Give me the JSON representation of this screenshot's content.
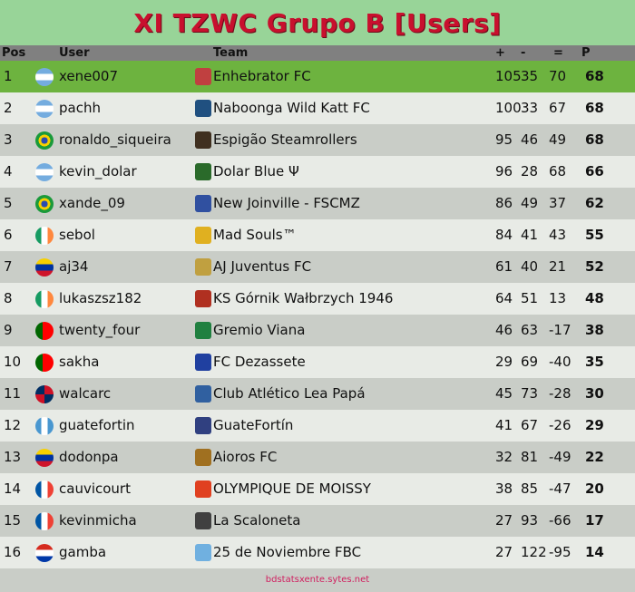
{
  "title": "XI TZWC Grupo B [Users]",
  "columns": {
    "pos": "Pos",
    "user": "User",
    "team": "Team",
    "for": "+",
    "against": "-",
    "diff": "=",
    "points": "P"
  },
  "rows": [
    {
      "pos": "1",
      "user": "xene007",
      "flag": "argentina",
      "team": "Enhebrator FC",
      "for": "105",
      "against": "35",
      "diff": "70",
      "points": "68"
    },
    {
      "pos": "2",
      "user": "pachh",
      "flag": "argentina",
      "team": "Naboonga Wild Katt FC",
      "for": "100",
      "against": "33",
      "diff": "67",
      "points": "68"
    },
    {
      "pos": "3",
      "user": "ronaldo_siqueira",
      "flag": "brazil",
      "team": "Espigão Steamrollers",
      "for": "95",
      "against": "46",
      "diff": "49",
      "points": "68"
    },
    {
      "pos": "4",
      "user": "kevin_dolar",
      "flag": "argentina",
      "team": "Dolar Blue Ψ",
      "for": "96",
      "against": "28",
      "diff": "68",
      "points": "66"
    },
    {
      "pos": "5",
      "user": "xande_09",
      "flag": "brazil",
      "team": "New Joinville - FSCMZ",
      "for": "86",
      "against": "49",
      "diff": "37",
      "points": "62"
    },
    {
      "pos": "6",
      "user": "sebol",
      "flag": "ireland",
      "team": "Mad Souls™",
      "for": "84",
      "against": "41",
      "diff": "43",
      "points": "55"
    },
    {
      "pos": "7",
      "user": "aj34",
      "flag": "venezuela",
      "team": "AJ Juventus FC",
      "for": "61",
      "against": "40",
      "diff": "21",
      "points": "52"
    },
    {
      "pos": "8",
      "user": "lukaszsz182",
      "flag": "ireland",
      "team": "KS Górnik Wałbrzych 1946",
      "for": "64",
      "against": "51",
      "diff": "13",
      "points": "48"
    },
    {
      "pos": "9",
      "user": "twenty_four",
      "flag": "portugal",
      "team": "Gremio Viana",
      "for": "46",
      "against": "63",
      "diff": "-17",
      "points": "38"
    },
    {
      "pos": "10",
      "user": "sakha",
      "flag": "portugal",
      "team": "FC Dezassete",
      "for": "29",
      "against": "69",
      "diff": "-40",
      "points": "35"
    },
    {
      "pos": "11",
      "user": "walcarc",
      "flag": "dominican-republic",
      "team": "Club Atlético Lea Papá",
      "for": "45",
      "against": "73",
      "diff": "-28",
      "points": "30"
    },
    {
      "pos": "12",
      "user": "guatefortin",
      "flag": "guatemala",
      "team": "GuateFortín",
      "for": "41",
      "against": "67",
      "diff": "-26",
      "points": "29"
    },
    {
      "pos": "13",
      "user": "dodonpa",
      "flag": "venezuela",
      "team": "Aioros FC",
      "for": "32",
      "against": "81",
      "diff": "-49",
      "points": "22"
    },
    {
      "pos": "14",
      "user": "cauvicourt",
      "flag": "france",
      "team": "OLYMPIQUE DE MOISSY",
      "for": "38",
      "against": "85",
      "diff": "-47",
      "points": "20"
    },
    {
      "pos": "15",
      "user": "kevinmicha",
      "flag": "france",
      "team": "La Scaloneta",
      "for": "27",
      "against": "93",
      "diff": "-66",
      "points": "17"
    },
    {
      "pos": "16",
      "user": "gamba",
      "flag": "paraguay",
      "team": "25 de Noviembre FBC",
      "for": "27",
      "against": "122",
      "diff": "-95",
      "points": "14"
    }
  ],
  "footer": "bdstatsxente.sytes.net",
  "colors": {
    "title": "#c8102e",
    "title_bg": "#98d498",
    "header_bg": "#808080",
    "leader_row": "#6db33f",
    "row_light": "#e8ebe6",
    "row_dark": "#c9cdc7",
    "footer_text": "#d02060"
  }
}
